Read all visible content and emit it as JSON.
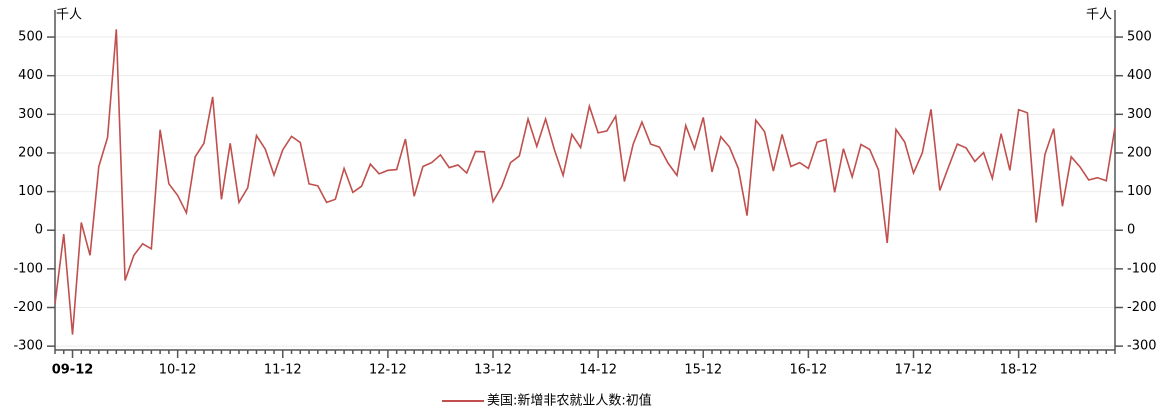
{
  "chart_data": {
    "type": "line",
    "y_unit": "千人",
    "y2_unit": "千人",
    "categories": [
      null,
      null,
      "09-12",
      null,
      null,
      null,
      null,
      null,
      null,
      null,
      null,
      null,
      null,
      null,
      "10-12",
      null,
      null,
      null,
      null,
      null,
      null,
      null,
      null,
      null,
      null,
      null,
      "11-12",
      null,
      null,
      null,
      null,
      null,
      null,
      null,
      null,
      null,
      null,
      null,
      "12-12",
      null,
      null,
      null,
      null,
      null,
      null,
      null,
      null,
      null,
      null,
      null,
      "13-12",
      null,
      null,
      null,
      null,
      null,
      null,
      null,
      null,
      null,
      null,
      null,
      "14-12",
      null,
      null,
      null,
      null,
      null,
      null,
      null,
      null,
      null,
      null,
      null,
      "15-12",
      null,
      null,
      null,
      null,
      null,
      null,
      null,
      null,
      null,
      null,
      null,
      "16-12",
      null,
      null,
      null,
      null,
      null,
      null,
      null,
      null,
      null,
      null,
      null,
      "17-12",
      null,
      null,
      null,
      null,
      null,
      null,
      null,
      null,
      null,
      null,
      null,
      "18-12",
      null,
      null,
      null,
      null,
      null,
      null,
      null,
      null,
      null,
      null,
      null
    ],
    "series": [
      {
        "name": "美国:新增非农就业人数:初值",
        "color": "#c0504d",
        "values": [
          -190,
          -10,
          -270,
          20,
          -65,
          165,
          240,
          520,
          -130,
          -65,
          -35,
          -48,
          260,
          120,
          90,
          45,
          190,
          225,
          345,
          80,
          225,
          72,
          110,
          245,
          210,
          143,
          208,
          243,
          227,
          120,
          115,
          72,
          80,
          160,
          98,
          114,
          171,
          146,
          155,
          157,
          236,
          88,
          165,
          175,
          195,
          162,
          169,
          148,
          204,
          203,
          74,
          113,
          175,
          192,
          288,
          217,
          288,
          209,
          142,
          248,
          214,
          321,
          252,
          257,
          295,
          126,
          223,
          280,
          223,
          215,
          173,
          142,
          271,
          211,
          292,
          151,
          242,
          215,
          160,
          38,
          285,
          255,
          153,
          248,
          165,
          175,
          160,
          228,
          235,
          98,
          211,
          138,
          222,
          209,
          156,
          -33,
          261,
          228,
          148,
          200,
          313,
          103,
          164,
          223,
          213,
          178,
          201,
          134,
          250,
          155,
          312,
          304,
          20,
          196,
          263,
          62,
          190,
          164,
          130,
          136,
          128,
          266
        ]
      }
    ],
    "ylim": [
      -310,
      570
    ],
    "yticks": [
      -300,
      -200,
      -100,
      0,
      100,
      200,
      300,
      400,
      500
    ],
    "y2lim": [
      -310,
      570
    ],
    "y2ticks": [
      -300,
      -200,
      -100,
      0,
      100,
      200,
      300,
      400,
      500
    ],
    "grid": true,
    "legend": "bottom"
  }
}
